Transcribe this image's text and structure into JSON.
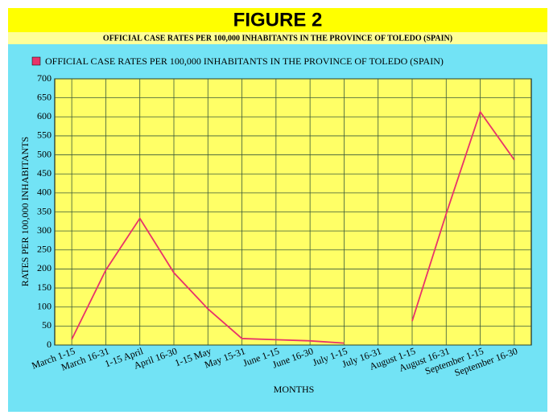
{
  "chart_data": {
    "type": "line",
    "title": "FIGURE 2",
    "subtitle": "OFFICIAL CASE RATES PER 100,000 INHABITANTS IN THE PROVINCE OF TOLEDO (SPAIN)",
    "x_label": "MONTHS",
    "y_label": "RATES PER 100,000 INHABITANTS",
    "categories": [
      "March 1-15",
      "March 16-31",
      "1-15 April",
      "April 16-30",
      "1-15 May",
      "May 15-31",
      "June 1-15",
      "June 16-30",
      "July 1-15",
      "July 16-31",
      "August 1-15",
      "August 16-31",
      "September 1-15",
      "September 16-30"
    ],
    "series": [
      {
        "name": "OFFICIAL CASE RATES PER 100,000 INHABITANTS IN THE PROVINCE OF TOLEDO (SPAIN)",
        "color": "#e8336a",
        "values": [
          15,
          197,
          333,
          190,
          95,
          17,
          14,
          11,
          5,
          null,
          63,
          345,
          613,
          487
        ]
      }
    ],
    "ylim": [
      0,
      700
    ],
    "yticks": [
      0,
      50,
      100,
      150,
      200,
      250,
      300,
      350,
      400,
      450,
      500,
      550,
      600,
      650,
      700
    ],
    "grid": true,
    "legend": "top-left"
  }
}
